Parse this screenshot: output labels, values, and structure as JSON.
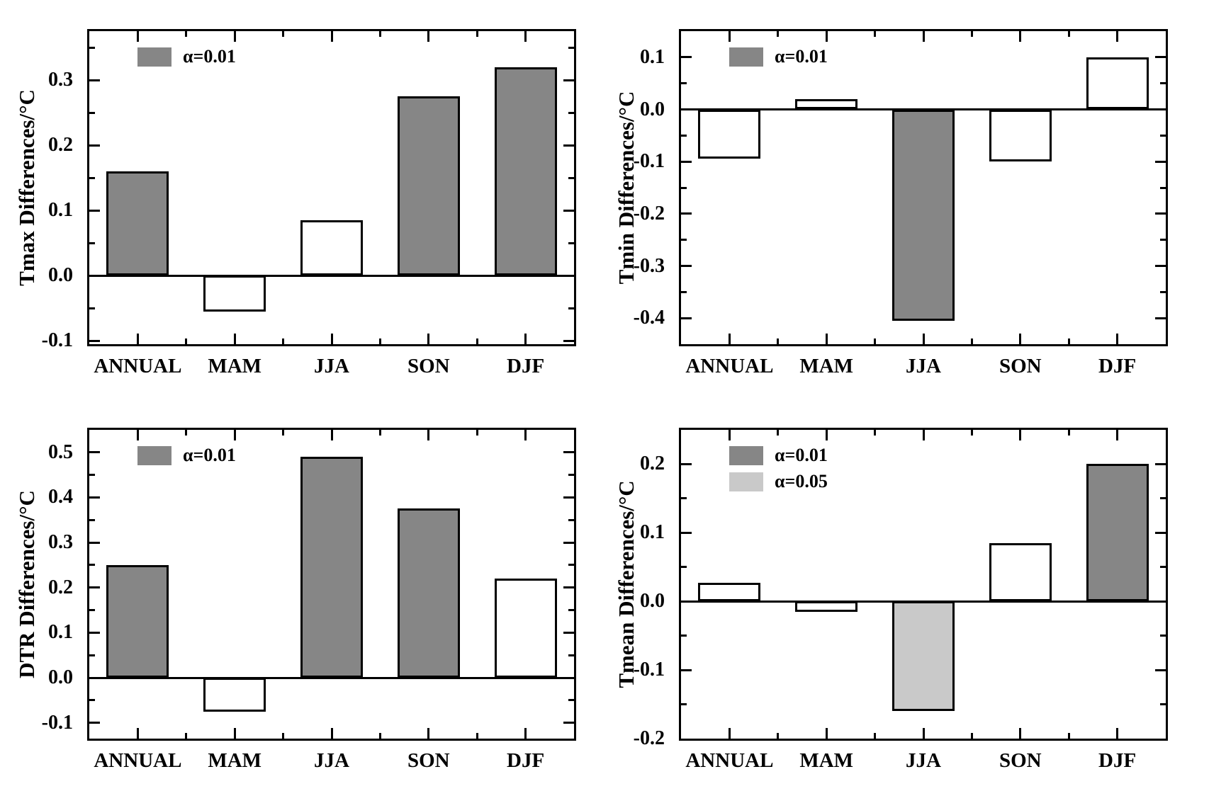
{
  "colors": {
    "alpha_001": "#868686",
    "alpha_005": "#c9c9c9",
    "non_significant": "#ffffff",
    "axis": "#000000",
    "text": "#000000",
    "background": "#ffffff"
  },
  "chart_data": [
    {
      "id": "tmax",
      "type": "bar",
      "ylabel": "Tmax Differences/°C",
      "categories": [
        "ANNUAL",
        "MAM",
        "JJA",
        "SON",
        "DJF"
      ],
      "values": [
        0.16,
        -0.055,
        0.085,
        0.275,
        0.32
      ],
      "significance": [
        "alpha_001",
        "non_significant",
        "non_significant",
        "alpha_001",
        "alpha_001"
      ],
      "ylim": [
        -0.105,
        0.375
      ],
      "ytick_values": [
        -0.1,
        0,
        0.1,
        0.2,
        0.3
      ],
      "ytick_labels": [
        "-0.1",
        "0.0",
        "0.1",
        "0.2",
        "0.3"
      ],
      "minor_tick_step": 0.05,
      "legend": [
        {
          "label": "α=0.01",
          "color_key": "alpha_001"
        }
      ],
      "legend_position": "top-left",
      "grid": false
    },
    {
      "id": "tmin",
      "type": "bar",
      "ylabel": "Tmin Differences/°C",
      "categories": [
        "ANNUAL",
        "MAM",
        "JJA",
        "SON",
        "DJF"
      ],
      "values": [
        -0.095,
        0.02,
        -0.405,
        -0.1,
        0.1
      ],
      "significance": [
        "non_significant",
        "non_significant",
        "alpha_001",
        "non_significant",
        "non_significant"
      ],
      "ylim": [
        -0.45,
        0.15
      ],
      "ytick_values": [
        -0.4,
        -0.3,
        -0.2,
        -0.1,
        0,
        0.1
      ],
      "ytick_labels": [
        "-0.4",
        "-0.3",
        "-0.2",
        "-0.1",
        "0.0",
        "0.1"
      ],
      "minor_tick_step": 0.05,
      "legend": [
        {
          "label": "α=0.01",
          "color_key": "alpha_001"
        }
      ],
      "legend_position": "top-left",
      "grid": false
    },
    {
      "id": "dtr",
      "type": "bar",
      "ylabel": "DTR Differences/°C",
      "categories": [
        "ANNUAL",
        "MAM",
        "JJA",
        "SON",
        "DJF"
      ],
      "values": [
        0.25,
        -0.075,
        0.49,
        0.375,
        0.22
      ],
      "significance": [
        "alpha_001",
        "non_significant",
        "alpha_001",
        "alpha_001",
        "non_significant"
      ],
      "ylim": [
        -0.135,
        0.55
      ],
      "ytick_values": [
        -0.1,
        0,
        0.1,
        0.2,
        0.3,
        0.4,
        0.5
      ],
      "ytick_labels": [
        "-0.1",
        "0.0",
        "0.1",
        "0.2",
        "0.3",
        "0.4",
        "0.5"
      ],
      "minor_tick_step": 0.05,
      "legend": [
        {
          "label": "α=0.01",
          "color_key": "alpha_001"
        }
      ],
      "legend_position": "top-left",
      "grid": false
    },
    {
      "id": "tmean",
      "type": "bar",
      "ylabel": "Tmean Differences/°C",
      "categories": [
        "ANNUAL",
        "MAM",
        "JJA",
        "SON",
        "DJF"
      ],
      "values": [
        0.027,
        -0.015,
        -0.16,
        0.085,
        0.2
      ],
      "significance": [
        "non_significant",
        "non_significant",
        "alpha_005",
        "non_significant",
        "alpha_001"
      ],
      "ylim": [
        -0.2,
        0.25
      ],
      "ytick_values": [
        -0.2,
        -0.1,
        0,
        0.1,
        0.2
      ],
      "ytick_labels": [
        "-0.2",
        "-0.1",
        "0.0",
        "0.1",
        "0.2"
      ],
      "minor_tick_step": 0.05,
      "legend": [
        {
          "label": "α=0.01",
          "color_key": "alpha_001"
        },
        {
          "label": "α=0.05",
          "color_key": "alpha_005"
        }
      ],
      "legend_position": "top-left",
      "grid": false
    }
  ]
}
